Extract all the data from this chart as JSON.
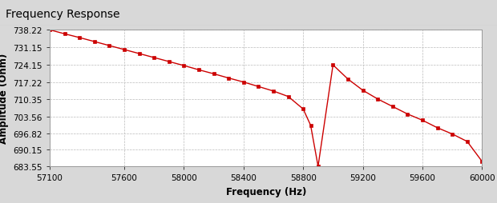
{
  "title": "Frequency Response",
  "xlabel": "Frequency (Hz)",
  "ylabel": "Amplitude (Ohm)",
  "line_color": "#cc0000",
  "marker": "s",
  "marker_size": 3,
  "background_color": "#d8d8d8",
  "plot_bg_color": "#ffffff",
  "title_fontsize": 10,
  "label_fontsize": 8.5,
  "tick_fontsize": 7.5,
  "xlim": [
    57100,
    60000
  ],
  "ylim": [
    683.55,
    738.22
  ],
  "yticks": [
    683.55,
    690.15,
    696.82,
    703.56,
    710.35,
    717.22,
    724.15,
    731.15,
    738.22
  ],
  "xticks": [
    57100,
    57600,
    58000,
    58400,
    58800,
    59200,
    59600,
    60000
  ],
  "x": [
    57100,
    57200,
    57300,
    57400,
    57500,
    57600,
    57700,
    57800,
    57900,
    58000,
    58100,
    58200,
    58300,
    58400,
    58500,
    58600,
    58700,
    58800,
    58850,
    58900,
    59000,
    59100,
    59200,
    59300,
    59400,
    59500,
    59600,
    59700,
    59800,
    59900,
    60000
  ],
  "y": [
    738.22,
    736.6,
    735.1,
    733.5,
    731.9,
    730.3,
    728.7,
    727.1,
    725.5,
    723.9,
    722.2,
    720.6,
    718.9,
    717.3,
    715.5,
    713.7,
    711.5,
    706.5,
    700.0,
    683.55,
    724.15,
    718.5,
    714.0,
    710.5,
    707.5,
    704.5,
    702.0,
    699.0,
    696.5,
    693.5,
    685.5
  ]
}
